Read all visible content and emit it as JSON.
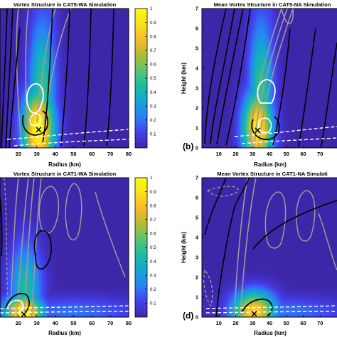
{
  "colormap": [
    "#3e26a8",
    "#4340ee",
    "#2d7ff5",
    "#14a6d2",
    "#1cbba3",
    "#5ac471",
    "#b3bc33",
    "#f7ba2c",
    "#f9e11b",
    "#f9fb0e"
  ],
  "marker_color": "#e52ae5",
  "contour_colors": {
    "black": "#000000",
    "gray": "#9a9a9a",
    "white": "#ffffff"
  },
  "chart_data": [
    {
      "id": "a",
      "type": "heatmap",
      "title": "Vortex Structure in CAT5-WA Simulation",
      "xlabel": "Radius (km)",
      "ylabel": "",
      "xlim": [
        10,
        80
      ],
      "ylim": [
        0,
        7
      ],
      "xticks": [
        20,
        30,
        40,
        50,
        60,
        70,
        80
      ],
      "yticks": [],
      "panel_label": "",
      "colorbar": {
        "min": 0,
        "max": 1,
        "ticks": [
          0.1,
          0.2,
          0.3,
          0.4,
          0.5,
          0.6,
          0.7,
          0.8,
          0.9,
          1
        ]
      },
      "hotspots": [
        {
          "x": 31,
          "y": 0.95,
          "sx": 6,
          "sy": 1.4,
          "v": 1.0
        },
        {
          "x": 33,
          "y": 2.8,
          "sx": 5,
          "sy": 2.6,
          "v": 0.5
        },
        {
          "x": 36,
          "y": 5.2,
          "sx": 4,
          "sy": 2.0,
          "v": 0.2
        }
      ],
      "marker": {
        "x": 31,
        "y": 0.9
      }
    },
    {
      "id": "b",
      "type": "heatmap",
      "title": "Mean Vortex Structure in CAT5-NA Simulation",
      "xlabel": "Radius (km)",
      "ylabel": "Height (km)",
      "xlim": [
        0,
        80
      ],
      "ylim": [
        0,
        7
      ],
      "xticks": [
        10,
        20,
        30,
        40,
        50,
        60,
        70
      ],
      "yticks": [
        0,
        1,
        2,
        3,
        4,
        5,
        6,
        7
      ],
      "panel_label": "(b)",
      "colorbar": null,
      "hotspots": [
        {
          "x": 33,
          "y": 1.0,
          "sx": 6,
          "sy": 1.3,
          "v": 0.95
        },
        {
          "x": 35,
          "y": 2.8,
          "sx": 5,
          "sy": 2.6,
          "v": 0.5
        },
        {
          "x": 38,
          "y": 5.0,
          "sx": 4,
          "sy": 2.0,
          "v": 0.2
        }
      ],
      "marker": {
        "x": 33,
        "y": 0.85
      }
    },
    {
      "id": "c",
      "type": "heatmap",
      "title": "Vortex Structure in CAT1-WA Simulation",
      "xlabel": "Radius (km)",
      "ylabel": "",
      "xlim": [
        10,
        80
      ],
      "ylim": [
        0,
        7
      ],
      "xticks": [
        20,
        30,
        40,
        50,
        60,
        70,
        80
      ],
      "yticks": [],
      "panel_label": "",
      "colorbar": {
        "min": 0,
        "max": 1,
        "ticks": [
          0.1,
          0.2,
          0.3,
          0.4,
          0.5,
          0.6,
          0.7,
          0.8,
          0.9,
          1
        ]
      },
      "hotspots": [
        {
          "x": 23,
          "y": 0.25,
          "sx": 7,
          "sy": 0.6,
          "v": 1.0
        },
        {
          "x": 24,
          "y": 1.4,
          "sx": 6,
          "sy": 1.6,
          "v": 0.45
        },
        {
          "x": 50,
          "y": 0.3,
          "sx": 25,
          "sy": 0.5,
          "v": 0.2
        }
      ],
      "marker": {
        "x": 23,
        "y": 0.12
      }
    },
    {
      "id": "d",
      "type": "heatmap",
      "title": "Mean Vortex Structure in CAT1-NA Simulati",
      "xlabel": "Radius (km)",
      "ylabel": "Height (km)",
      "xlim": [
        0,
        80
      ],
      "ylim": [
        0,
        7
      ],
      "xticks": [
        10,
        20,
        30,
        40,
        50,
        60,
        70
      ],
      "yticks": [
        0,
        1,
        2,
        3,
        4,
        5,
        6,
        7
      ],
      "panel_label": "(d)",
      "colorbar": null,
      "hotspots": [
        {
          "x": 31,
          "y": 0.3,
          "sx": 9,
          "sy": 0.7,
          "v": 0.85
        },
        {
          "x": 50,
          "y": 0.3,
          "sx": 25,
          "sy": 0.5,
          "v": 0.2
        }
      ],
      "marker": {
        "x": 31,
        "y": 0.15
      }
    }
  ]
}
